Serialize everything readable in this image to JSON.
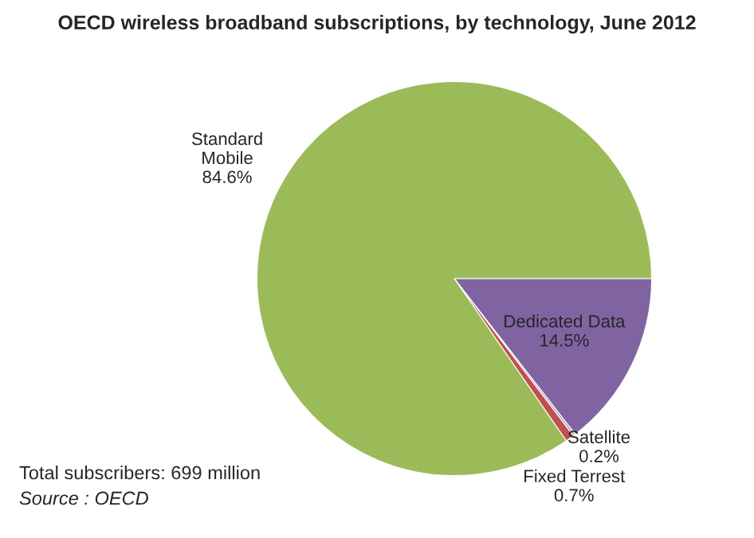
{
  "chart_data": {
    "type": "pie",
    "title": "OECD wireless broadband subscriptions, by technology, June 2012",
    "categories": [
      "Dedicated Data",
      "Satellite",
      "Fixed Terrest",
      "Standard\nMobile"
    ],
    "values": [
      14.5,
      0.2,
      0.7,
      84.6
    ],
    "value_labels": [
      "14.5%",
      "0.2%",
      "0.7%",
      "84.6%"
    ],
    "colors": [
      "#8064a2",
      "#b3a2c7",
      "#c0504d",
      "#9bbb59"
    ],
    "annotations": [
      "Total subscribers: 699 million",
      "Source : OECD"
    ]
  }
}
